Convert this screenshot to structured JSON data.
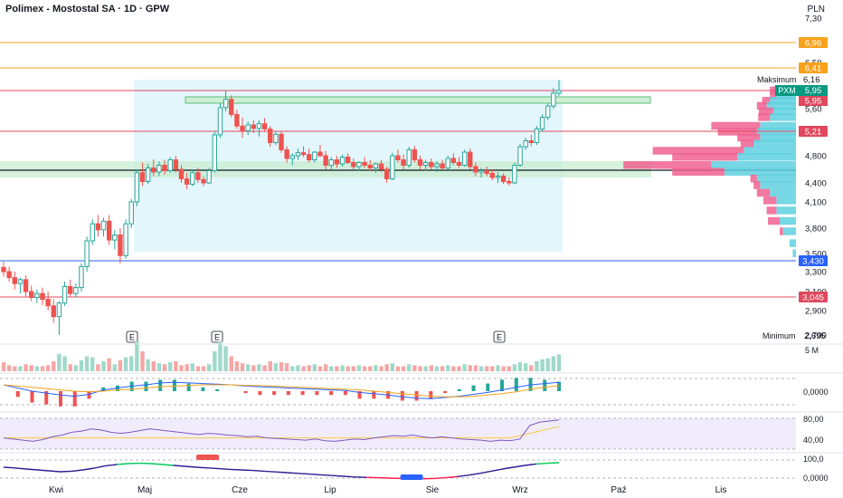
{
  "header": {
    "title": "Polimex - Mostostal SA · 1D · GPW",
    "currency": "PLN"
  },
  "colors": {
    "up": "#26a69a",
    "down": "#ef5350",
    "orange": "#f7a21b",
    "red_line": "#e0485d",
    "blue_line": "#2962ff",
    "zone_fill": "#e3f6fb",
    "green_band": "#c8ecd0",
    "vp_blue": "#5fd0e0",
    "vp_pink": "#f06292"
  },
  "price_axis": {
    "ticks": [
      "7,30",
      "6,50",
      "5,60",
      "4,800",
      "4,400",
      "4,100",
      "3,800",
      "3,500",
      "3,300",
      "3,100",
      "2,900",
      "2,700"
    ],
    "tick_values": [
      7.3,
      6.5,
      5.6,
      4.8,
      4.4,
      4.1,
      3.8,
      3.5,
      3.3,
      3.1,
      2.9,
      2.7
    ]
  },
  "levels": [
    {
      "label": "6,96",
      "value": 6.96,
      "color": "#f7a21b"
    },
    {
      "label": "6,41",
      "value": 6.41,
      "color": "#f7a21b"
    },
    {
      "label": "5,95",
      "value": 5.95,
      "color": "#e0485d"
    },
    {
      "label": "5,21",
      "value": 5.21,
      "color": "#e0485d"
    },
    {
      "label": "3,430",
      "value": 3.43,
      "color": "#2962ff"
    },
    {
      "label": "3,045",
      "value": 3.045,
      "color": "#e0485d"
    }
  ],
  "markers": {
    "max_label": "Maksimum",
    "max_value": "6,16",
    "min_label": "Minimum",
    "min_value": "2,695",
    "symbol": "PXM",
    "symbol_value": "5,95",
    "last_value": "5,95"
  },
  "earnings_marks": [
    "E",
    "E",
    "E"
  ],
  "volume_axis": {
    "label": "5 M"
  },
  "macd_axis": {
    "label": "0,0000"
  },
  "rsi_axis": {
    "labels": [
      "80,00",
      "40,00"
    ]
  },
  "osc_axis": {
    "labels": [
      "100,0",
      "0,0000"
    ]
  },
  "x_axis": {
    "labels": [
      "Kwi",
      "Maj",
      "Cze",
      "Lip",
      "Sie",
      "Wrz",
      "Paź",
      "Lis"
    ]
  },
  "chart_data": {
    "type": "candlestick",
    "title": "Polimex - Mostostal SA · 1D · GPW",
    "ylim": [
      2.6,
      7.4
    ],
    "ohlc": [
      [
        3.35,
        3.42,
        3.25,
        3.3
      ],
      [
        3.3,
        3.36,
        3.2,
        3.24
      ],
      [
        3.24,
        3.3,
        3.12,
        3.18
      ],
      [
        3.18,
        3.24,
        3.08,
        3.22
      ],
      [
        3.22,
        3.26,
        3.05,
        3.1
      ],
      [
        3.1,
        3.16,
        3.0,
        3.04
      ],
      [
        3.04,
        3.12,
        2.98,
        3.08
      ],
      [
        3.08,
        3.14,
        2.96,
        3.02
      ],
      [
        3.02,
        3.1,
        2.9,
        2.95
      ],
      [
        2.95,
        3.02,
        2.8,
        2.85
      ],
      [
        2.85,
        3.0,
        2.7,
        2.98
      ],
      [
        2.98,
        3.2,
        2.95,
        3.15
      ],
      [
        3.15,
        3.22,
        3.05,
        3.08
      ],
      [
        3.08,
        3.18,
        3.04,
        3.14
      ],
      [
        3.14,
        3.4,
        3.1,
        3.36
      ],
      [
        3.36,
        3.7,
        3.3,
        3.65
      ],
      [
        3.65,
        3.9,
        3.6,
        3.85
      ],
      [
        3.85,
        3.95,
        3.7,
        3.78
      ],
      [
        3.78,
        3.92,
        3.7,
        3.88
      ],
      [
        3.88,
        3.95,
        3.6,
        3.66
      ],
      [
        3.66,
        3.78,
        3.55,
        3.72
      ],
      [
        3.72,
        3.8,
        3.4,
        3.48
      ],
      [
        3.48,
        3.9,
        3.45,
        3.85
      ],
      [
        3.85,
        4.15,
        3.8,
        4.1
      ],
      [
        4.1,
        4.6,
        4.05,
        4.55
      ],
      [
        4.55,
        4.7,
        4.35,
        4.42
      ],
      [
        4.42,
        4.68,
        4.38,
        4.62
      ],
      [
        4.62,
        4.75,
        4.5,
        4.56
      ],
      [
        4.56,
        4.72,
        4.5,
        4.66
      ],
      [
        4.66,
        4.74,
        4.52,
        4.58
      ],
      [
        4.58,
        4.78,
        4.55,
        4.74
      ],
      [
        4.74,
        4.8,
        4.55,
        4.6
      ],
      [
        4.6,
        4.66,
        4.4,
        4.46
      ],
      [
        4.46,
        4.55,
        4.3,
        4.38
      ],
      [
        4.38,
        4.6,
        4.35,
        4.55
      ],
      [
        4.55,
        4.62,
        4.4,
        4.45
      ],
      [
        4.45,
        4.5,
        4.35,
        4.4
      ],
      [
        4.4,
        4.62,
        4.38,
        4.58
      ],
      [
        4.58,
        5.2,
        4.55,
        5.15
      ],
      [
        5.15,
        5.7,
        5.1,
        5.62
      ],
      [
        5.62,
        5.95,
        5.55,
        5.78
      ],
      [
        5.78,
        5.86,
        5.45,
        5.5
      ],
      [
        5.5,
        5.58,
        5.25,
        5.3
      ],
      [
        5.3,
        5.45,
        5.1,
        5.22
      ],
      [
        5.22,
        5.38,
        5.15,
        5.32
      ],
      [
        5.32,
        5.4,
        5.18,
        5.26
      ],
      [
        5.26,
        5.4,
        5.12,
        5.34
      ],
      [
        5.34,
        5.44,
        5.2,
        5.25
      ],
      [
        5.25,
        5.3,
        4.95,
        5.02
      ],
      [
        5.02,
        5.2,
        4.98,
        5.16
      ],
      [
        5.16,
        5.22,
        4.85,
        4.9
      ],
      [
        4.9,
        4.96,
        4.7,
        4.76
      ],
      [
        4.76,
        4.84,
        4.66,
        4.8
      ],
      [
        4.8,
        4.92,
        4.74,
        4.85
      ],
      [
        4.85,
        4.96,
        4.78,
        4.82
      ],
      [
        4.82,
        4.92,
        4.7,
        4.74
      ],
      [
        4.74,
        4.88,
        4.7,
        4.86
      ],
      [
        4.86,
        4.98,
        4.78,
        4.8
      ],
      [
        4.8,
        4.88,
        4.6,
        4.66
      ],
      [
        4.66,
        4.78,
        4.6,
        4.74
      ],
      [
        4.74,
        4.8,
        4.62,
        4.68
      ],
      [
        4.68,
        4.82,
        4.64,
        4.78
      ],
      [
        4.78,
        4.84,
        4.68,
        4.7
      ],
      [
        4.7,
        4.76,
        4.6,
        4.64
      ],
      [
        4.64,
        4.72,
        4.58,
        4.7
      ],
      [
        4.7,
        4.78,
        4.62,
        4.66
      ],
      [
        4.66,
        4.74,
        4.58,
        4.62
      ],
      [
        4.62,
        4.7,
        4.55,
        4.68
      ],
      [
        4.68,
        4.74,
        4.56,
        4.6
      ],
      [
        4.6,
        4.64,
        4.4,
        4.46
      ],
      [
        4.46,
        4.85,
        4.44,
        4.8
      ],
      [
        4.8,
        4.9,
        4.7,
        4.74
      ],
      [
        4.74,
        4.82,
        4.6,
        4.66
      ],
      [
        4.66,
        4.95,
        4.62,
        4.9
      ],
      [
        4.9,
        4.96,
        4.7,
        4.74
      ],
      [
        4.74,
        4.8,
        4.6,
        4.66
      ],
      [
        4.66,
        4.74,
        4.58,
        4.7
      ],
      [
        4.7,
        4.76,
        4.6,
        4.64
      ],
      [
        4.64,
        4.72,
        4.56,
        4.68
      ],
      [
        4.68,
        4.74,
        4.6,
        4.62
      ],
      [
        4.62,
        4.8,
        4.6,
        4.76
      ],
      [
        4.76,
        4.84,
        4.66,
        4.7
      ],
      [
        4.7,
        4.78,
        4.62,
        4.66
      ],
      [
        4.66,
        4.9,
        4.64,
        4.86
      ],
      [
        4.86,
        4.92,
        4.6,
        4.64
      ],
      [
        4.64,
        4.7,
        4.5,
        4.56
      ],
      [
        4.56,
        4.62,
        4.48,
        4.58
      ],
      [
        4.58,
        4.64,
        4.5,
        4.54
      ],
      [
        4.54,
        4.6,
        4.44,
        4.48
      ],
      [
        4.48,
        4.56,
        4.4,
        4.5
      ],
      [
        4.5,
        4.54,
        4.38,
        4.42
      ],
      [
        4.42,
        4.48,
        4.36,
        4.4
      ],
      [
        4.4,
        4.7,
        4.38,
        4.66
      ],
      [
        4.66,
        5.0,
        4.64,
        4.95
      ],
      [
        4.95,
        5.1,
        4.9,
        5.05
      ],
      [
        5.05,
        5.15,
        4.96,
        5.02
      ],
      [
        5.02,
        5.3,
        4.98,
        5.25
      ],
      [
        5.25,
        5.5,
        5.2,
        5.45
      ],
      [
        5.45,
        5.7,
        5.4,
        5.65
      ],
      [
        5.65,
        6.0,
        5.6,
        5.9
      ],
      [
        5.9,
        6.16,
        5.85,
        5.95
      ]
    ],
    "volume_profile": [
      {
        "price": 5.95,
        "up": 25,
        "down": 15
      },
      {
        "price": 5.85,
        "up": 30,
        "down": 10
      },
      {
        "price": 5.75,
        "up": 40,
        "down": 12
      },
      {
        "price": 5.65,
        "up": 45,
        "down": 15
      },
      {
        "price": 5.55,
        "up": 35,
        "down": 22
      },
      {
        "price": 5.45,
        "up": 40,
        "down": 18
      },
      {
        "price": 5.3,
        "up": 55,
        "down": 75
      },
      {
        "price": 5.2,
        "up": 60,
        "down": 60
      },
      {
        "price": 5.1,
        "up": 55,
        "down": 35
      },
      {
        "price": 5.0,
        "up": 65,
        "down": 20
      },
      {
        "price": 4.88,
        "up": 80,
        "down": 140
      },
      {
        "price": 4.78,
        "up": 90,
        "down": 100
      },
      {
        "price": 4.66,
        "up": 130,
        "down": 135
      },
      {
        "price": 4.56,
        "up": 110,
        "down": 80
      },
      {
        "price": 4.46,
        "up": 60,
        "down": 10
      },
      {
        "price": 4.36,
        "up": 55,
        "down": 10
      },
      {
        "price": 4.24,
        "up": 40,
        "down": 20
      },
      {
        "price": 4.12,
        "up": 30,
        "down": 20
      },
      {
        "price": 4.0,
        "up": 30,
        "down": 15
      },
      {
        "price": 3.88,
        "up": 25,
        "down": 18
      },
      {
        "price": 3.76,
        "up": 20,
        "down": 5
      },
      {
        "price": 3.62,
        "up": 10,
        "down": 0
      },
      {
        "price": 3.5,
        "up": 5,
        "down": 0
      }
    ],
    "volume": [
      18,
      12,
      10,
      10,
      14,
      12,
      10,
      10,
      12,
      20,
      35,
      30,
      14,
      12,
      22,
      30,
      28,
      14,
      20,
      26,
      14,
      22,
      28,
      30,
      60,
      40,
      24,
      20,
      16,
      14,
      18,
      20,
      12,
      14,
      16,
      10,
      10,
      14,
      40,
      60,
      50,
      30,
      20,
      16,
      14,
      12,
      14,
      12,
      20,
      16,
      18,
      16,
      10,
      12,
      10,
      12,
      14,
      10,
      14,
      10,
      10,
      12,
      10,
      10,
      12,
      10,
      10,
      12,
      10,
      14,
      16,
      10,
      10,
      14,
      12,
      10,
      10,
      12,
      10,
      10,
      12,
      10,
      10,
      14,
      12,
      12,
      10,
      10,
      10,
      12,
      10,
      10,
      14,
      18,
      16,
      12,
      20,
      24,
      26,
      30,
      34
    ],
    "macd": [
      [
        0.1,
        0.1
      ],
      [
        0.05,
        0.08
      ],
      [
        0.0,
        0.06
      ],
      [
        -0.03,
        0.04
      ],
      [
        -0.06,
        0.02
      ],
      [
        -0.08,
        0.0
      ],
      [
        -0.05,
        -0.01
      ],
      [
        0.02,
        0.0
      ],
      [
        0.05,
        0.02
      ],
      [
        0.08,
        0.03
      ],
      [
        0.1,
        0.05
      ],
      [
        0.13,
        0.07
      ],
      [
        0.14,
        0.08
      ],
      [
        0.13,
        0.09
      ],
      [
        0.12,
        0.1
      ],
      [
        0.11,
        0.1
      ],
      [
        0.1,
        0.1
      ],
      [
        0.08,
        0.09
      ],
      [
        0.07,
        0.09
      ],
      [
        0.06,
        0.08
      ],
      [
        0.05,
        0.07
      ],
      [
        0.04,
        0.06
      ],
      [
        0.03,
        0.05
      ],
      [
        0.02,
        0.04
      ],
      [
        0.01,
        0.03
      ],
      [
        -0.02,
        0.02
      ],
      [
        -0.04,
        0.0
      ],
      [
        -0.06,
        -0.02
      ],
      [
        -0.09,
        -0.04
      ],
      [
        -0.11,
        -0.06
      ],
      [
        -0.12,
        -0.08
      ],
      [
        -0.1,
        -0.09
      ],
      [
        -0.08,
        -0.09
      ],
      [
        -0.05,
        -0.08
      ],
      [
        -0.02,
        -0.06
      ],
      [
        0.02,
        -0.04
      ],
      [
        0.06,
        -0.01
      ],
      [
        0.1,
        0.03
      ],
      [
        0.12,
        0.06
      ],
      [
        0.14,
        0.09
      ]
    ],
    "rsi": [
      50,
      48,
      46,
      44,
      47,
      52,
      55,
      60,
      62,
      66,
      64,
      60,
      58,
      60,
      63,
      66,
      64,
      62,
      60,
      58,
      56,
      58,
      57,
      55,
      54,
      52,
      53,
      50,
      49,
      48,
      47,
      46,
      48,
      45,
      44,
      46,
      48,
      47,
      50,
      52,
      54,
      53,
      55,
      52,
      50,
      52,
      50,
      48,
      47,
      46,
      44,
      46,
      45,
      48,
      72,
      78,
      80,
      82
    ],
    "osc": [
      70,
      66,
      60,
      55,
      50,
      45,
      48,
      55,
      65,
      78,
      85,
      90,
      92,
      90,
      85,
      80,
      75,
      70,
      66,
      62,
      58,
      55,
      52,
      48,
      44,
      40,
      36,
      32,
      28,
      24,
      20,
      16,
      14,
      12,
      10,
      8,
      6,
      6,
      8,
      12,
      18,
      26,
      36,
      48,
      60,
      70,
      80,
      88,
      92,
      95
    ],
    "osc_markers": [
      {
        "from": 17,
        "to": 19,
        "level": "high",
        "color": "#ef5350"
      },
      {
        "from": 35,
        "to": 37,
        "level": "low",
        "color": "#2962ff"
      }
    ],
    "xlabels": [
      "Kwi",
      "Maj",
      "Cze",
      "Lip",
      "Sie",
      "Wrz",
      "Paź",
      "Lis"
    ]
  }
}
